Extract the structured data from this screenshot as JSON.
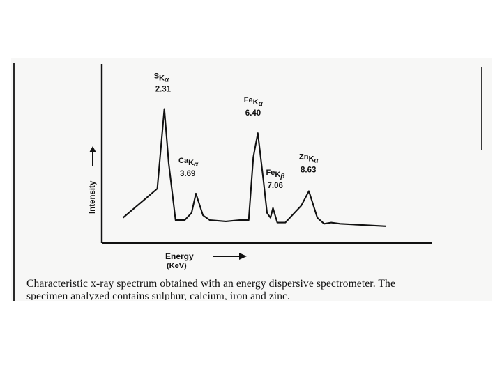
{
  "chart_data": {
    "type": "line",
    "title": "",
    "xlabel": "Energy",
    "xlabel_unit": "(KeV)",
    "ylabel": "Intensity",
    "x": [
      0.5,
      1.0,
      1.5,
      2.0,
      2.31,
      2.5,
      2.8,
      3.2,
      3.5,
      3.69,
      4.0,
      4.3,
      5.0,
      5.6,
      6.0,
      6.2,
      6.4,
      6.65,
      6.8,
      6.95,
      7.06,
      7.25,
      7.6,
      8.0,
      8.3,
      8.63,
      9.0,
      9.3,
      9.6,
      10.0,
      11.0,
      12.0
    ],
    "y": [
      10,
      18,
      26,
      34,
      100,
      55,
      8,
      8,
      14,
      30,
      12,
      8,
      7,
      8,
      8,
      60,
      80,
      40,
      14,
      10,
      18,
      6,
      6,
      14,
      20,
      32,
      10,
      5,
      6,
      5,
      4,
      3
    ],
    "xlim": [
      0,
      12.2
    ],
    "ylim": [
      0,
      115
    ],
    "grid": false,
    "peaks": [
      {
        "element": "S",
        "line": "K",
        "sub": "α",
        "energy": "2.31"
      },
      {
        "element": "Ca",
        "line": "K",
        "sub": "α",
        "energy": "3.69"
      },
      {
        "element": "Fe",
        "line": "K",
        "sub": "α",
        "energy": "6.40"
      },
      {
        "element": "Fe",
        "line": "K",
        "sub": "β",
        "energy": "7.06"
      },
      {
        "element": "Zn",
        "line": "K",
        "sub": "α",
        "energy": "8.63"
      }
    ]
  },
  "caption": {
    "line1": "Characteristic x-ray spectrum obtained with an energy dispersive spectrometer. The",
    "line2": "specimen analyzed contains sulphur, calcium, iron and zinc."
  },
  "colors": {
    "ink": "#111111",
    "paper": "#f7f7f6"
  }
}
